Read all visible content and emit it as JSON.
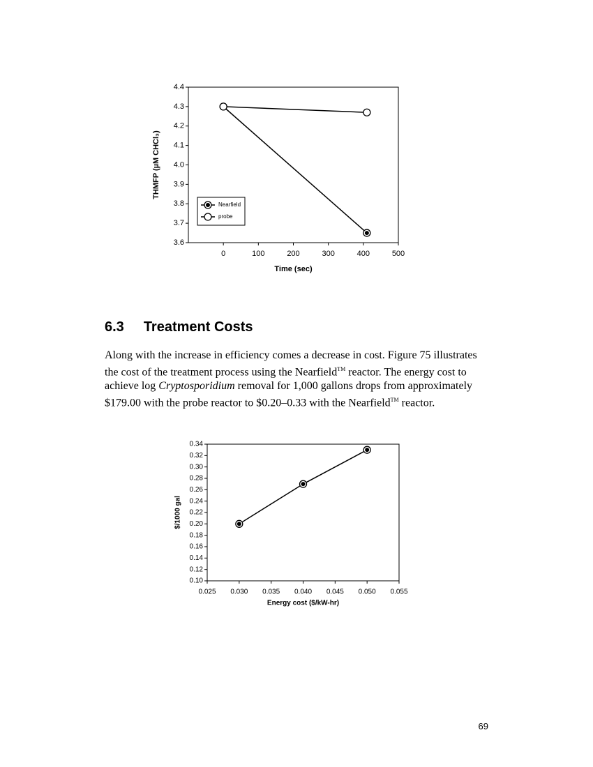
{
  "chart_data": [
    {
      "type": "line",
      "x": [
        0,
        410
      ],
      "series": [
        {
          "name": "Nearfield",
          "color": "#000000",
          "marker": "filled",
          "values": [
            4.3,
            3.65
          ]
        },
        {
          "name": "probe",
          "color": "#000000",
          "marker": "open",
          "values": [
            4.3,
            4.27
          ]
        }
      ],
      "x_label": "Time (sec)",
      "y_label": "THMFP (µM CHCl₃)",
      "xlim": [
        -100,
        500
      ],
      "xticks": [
        0,
        100,
        200,
        300,
        400,
        500
      ],
      "ylim": [
        3.6,
        4.4
      ],
      "yticks": [
        3.6,
        3.7,
        3.8,
        3.9,
        {
          "value": 4,
          "label": "4.0"
        },
        4.1,
        4.2,
        4.3,
        4.4
      ],
      "legend": "lower left",
      "grid": false
    },
    {
      "type": "line",
      "x": [
        0.03,
        0.04,
        0.05
      ],
      "series": [
        {
          "color": "#000000",
          "marker": "filled",
          "values": [
            0.2,
            0.27,
            0.33
          ]
        }
      ],
      "x_label": "Energy cost ($/kW-hr)",
      "y_label": "$/1000 gal",
      "xlim": [
        0.025,
        0.055
      ],
      "xticks": [
        0.025,
        {
          "value": 0.03,
          "label": "0.030"
        },
        0.035,
        {
          "value": 0.04,
          "label": "0.040"
        },
        0.045,
        {
          "value": 0.05,
          "label": "0.050"
        },
        0.055
      ],
      "ylim": [
        0.1,
        0.34
      ],
      "yticks": [
        {
          "value": 0.1,
          "label": "0.10"
        },
        0.12,
        0.14,
        0.16,
        0.18,
        {
          "value": 0.2,
          "label": "0.20"
        },
        0.22,
        0.24,
        0.26,
        0.28,
        {
          "value": 0.3,
          "label": "0.30"
        },
        0.32,
        0.34
      ],
      "grid": false
    }
  ],
  "section": {
    "number": "6.3",
    "title": "Treatment Costs"
  },
  "paragraph": [
    {
      "text": "Along with the increase in efficiency comes a decrease in cost.  Figure 75 illustrates the cost of the treatment process using the Nearfield"
    },
    {
      "text": "TM",
      "style": "sup"
    },
    {
      "text": " reactor.  The energy cost to achieve log "
    },
    {
      "text": "Cryptosporidium",
      "style": "italic"
    },
    {
      "text": " removal for 1,000 gallons drops from approximately $179.00 with the probe reactor to $0.20–0.33 with the Nearfield"
    },
    {
      "text": "TM",
      "style": "sup"
    },
    {
      "text": " reactor."
    }
  ],
  "page_number": "69"
}
